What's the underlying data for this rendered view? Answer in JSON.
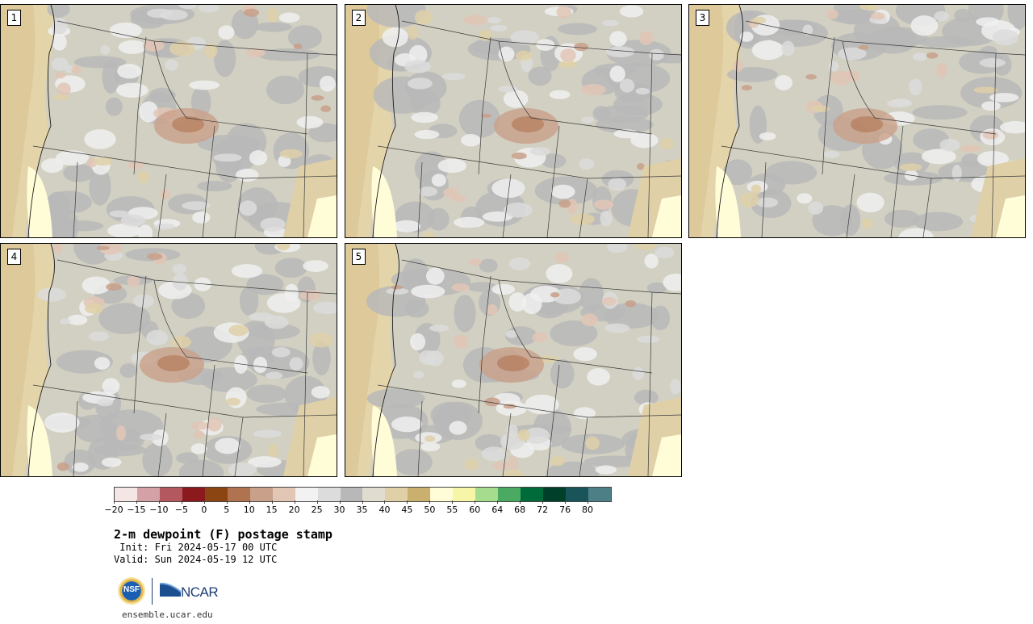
{
  "panels": [
    {
      "label": "1"
    },
    {
      "label": "2"
    },
    {
      "label": "3"
    },
    {
      "label": "4"
    },
    {
      "label": "5"
    }
  ],
  "legend": {
    "colors": [
      "#f5e6e6",
      "#d4a1a6",
      "#b3585f",
      "#8b1a1e",
      "#8b4513",
      "#b07350",
      "#c9a08a",
      "#e2c6b6",
      "#f2f2f2",
      "#dcdcdc",
      "#b8b8b8",
      "#e0ddd0",
      "#dfd0a8",
      "#c9b06e",
      "#fffcd8",
      "#f6f5a8",
      "#a6dc8e",
      "#4aaa62",
      "#006b3a",
      "#00402a",
      "#18545a",
      "#4d8086"
    ],
    "ticks": [
      "−20",
      "−15",
      "−10",
      "−5",
      "0",
      "5",
      "10",
      "15",
      "20",
      "25",
      "30",
      "35",
      "40",
      "45",
      "50",
      "55",
      "60",
      "64",
      "68",
      "72",
      "76",
      "80"
    ]
  },
  "title": "2-m dewpoint (F) postage stamp",
  "init": " Init: Fri 2024-05-17 00 UTC",
  "valid": "Valid: Sun 2024-05-19 12 UTC",
  "logos": {
    "nsf": "NSF",
    "ncar": "NCAR"
  },
  "site": "ensemble.ucar.edu"
}
